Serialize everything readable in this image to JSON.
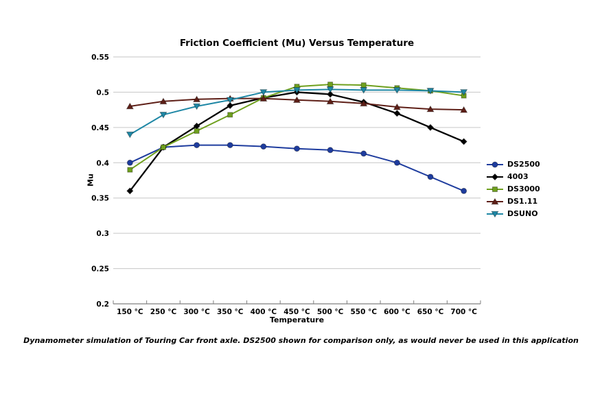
{
  "chart_data": {
    "type": "line",
    "title": "Friction Coefficient (Mu) Versus Temperature",
    "xlabel": "Temperature",
    "ylabel": "Mu",
    "categories": [
      "150 °C",
      "250 °C",
      "300 °C",
      "350 °C",
      "400 °C",
      "450 °C",
      "500 °C",
      "550 °C",
      "600 °C",
      "650 °C",
      "700 °C"
    ],
    "ylim": [
      0.2,
      0.55
    ],
    "ytick_values": [
      0.2,
      0.25,
      0.3,
      0.35,
      0.4,
      0.45,
      0.5,
      0.55
    ],
    "ytick_labels": [
      "0.2",
      "0.25",
      "0.3",
      "0.35",
      "0.4",
      "0.45",
      "0.5",
      "0.55"
    ],
    "grid": true,
    "legend_position": "right",
    "series": [
      {
        "name": "DS2500",
        "color": "#1E3C9E",
        "marker": "circle",
        "values": [
          0.4,
          0.422,
          0.425,
          0.425,
          0.423,
          0.42,
          0.418,
          0.413,
          0.4,
          0.38,
          0.36
        ]
      },
      {
        "name": "4003",
        "color": "#000000",
        "marker": "diamond",
        "values": [
          0.36,
          0.422,
          0.452,
          0.481,
          0.492,
          0.5,
          0.497,
          0.486,
          0.47,
          0.45,
          0.43
        ]
      },
      {
        "name": "DS3000",
        "color": "#6FA01E",
        "marker": "square",
        "values": [
          0.39,
          0.422,
          0.445,
          0.468,
          0.492,
          0.508,
          0.511,
          0.51,
          0.506,
          0.502,
          0.495
        ]
      },
      {
        "name": "DS1.11",
        "color": "#5E1F17",
        "marker": "triangle-up",
        "values": [
          0.48,
          0.487,
          0.49,
          0.491,
          0.491,
          0.489,
          0.487,
          0.484,
          0.479,
          0.476,
          0.475
        ]
      },
      {
        "name": "DSUNO",
        "color": "#1E87A5",
        "marker": "triangle-down",
        "values": [
          0.44,
          0.468,
          0.48,
          0.489,
          0.5,
          0.503,
          0.504,
          0.503,
          0.503,
          0.502,
          0.5
        ]
      }
    ]
  },
  "caption": "Dynamometer simulation of Touring Car front axle. DS2500 shown for comparison only, as would never be used in this application",
  "colors": {
    "background": "#FFFFFF",
    "gridline": "#C6C6C6",
    "axis": "#7F7F7F",
    "text": "#000000"
  }
}
